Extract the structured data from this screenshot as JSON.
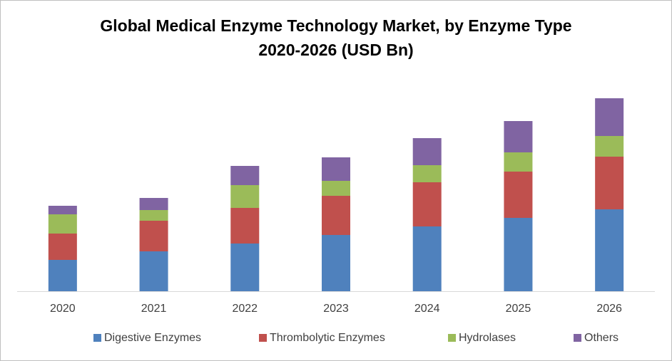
{
  "chart_data": {
    "type": "stacked_bar",
    "title": "Global Medical Enzyme Technology Market, by Enzyme Type",
    "subtitle": "2020-2026 (USD Bn)",
    "categories": [
      "2020",
      "2021",
      "2022",
      "2023",
      "2024",
      "2025",
      "2026"
    ],
    "series": [
      {
        "name": "Digestive Enzymes",
        "color": "#4f81bd",
        "values": [
          4.4,
          5.6,
          6.7,
          7.9,
          9.1,
          10.3,
          11.5
        ]
      },
      {
        "name": "Thrombolytic Enzymes",
        "color": "#c0504d",
        "values": [
          3.7,
          4.3,
          5.0,
          5.5,
          6.2,
          6.5,
          7.4
        ]
      },
      {
        "name": "Hydrolases",
        "color": "#9bbb59",
        "values": [
          2.7,
          1.5,
          3.2,
          2.1,
          2.4,
          2.7,
          2.9
        ]
      },
      {
        "name": "Others",
        "color": "#8064a2",
        "values": [
          1.2,
          1.7,
          2.7,
          3.3,
          3.8,
          4.4,
          5.3
        ]
      }
    ],
    "legend": "bottom",
    "grid": false
  }
}
